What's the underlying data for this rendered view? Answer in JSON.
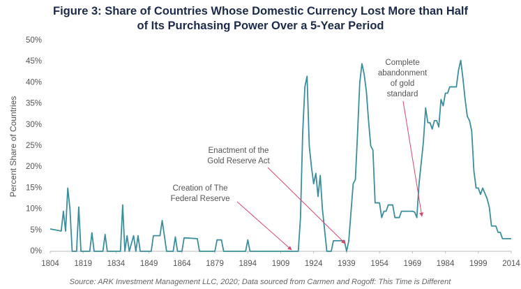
{
  "chart_data": {
    "type": "line",
    "title": "Figure 3: Share of Countries Whose Domestic Currency Lost More than Half of Its Purchasing Power Over a 5-Year Period",
    "y_label": "Percent Share of Countries",
    "source": "Source: ARK Investment Management LLC, 2020; Data sourced from Carmen and Rogoff: This Time is Different",
    "color": "#3b8e9e",
    "annotation_color": "#d9476b",
    "x": [
      1804,
      1807,
      1809,
      1810,
      1811,
      1812,
      1813,
      1814,
      1816,
      1817,
      1818,
      1822,
      1823,
      1824,
      1828,
      1829,
      1830,
      1836,
      1837,
      1838,
      1839,
      1840,
      1842,
      1843,
      1844,
      1845,
      1850,
      1851,
      1854,
      1855,
      1856,
      1857,
      1860,
      1861,
      1862,
      1864,
      1865,
      1871,
      1872,
      1879,
      1880,
      1882,
      1883,
      1893,
      1894,
      1895,
      1917,
      1918,
      1919,
      1920,
      1921,
      1922,
      1923,
      1924,
      1925,
      1926,
      1927,
      1928,
      1930,
      1932,
      1933,
      1938,
      1939,
      1940,
      1942,
      1943,
      1944,
      1945,
      1946,
      1947,
      1948,
      1949,
      1950,
      1951,
      1952,
      1954,
      1955,
      1956,
      1957,
      1958,
      1960,
      1961,
      1963,
      1964,
      1969,
      1970,
      1971,
      1972,
      1974,
      1975,
      1976,
      1977,
      1978,
      1979,
      1980,
      1981,
      1982,
      1983,
      1984,
      1985,
      1986,
      1989,
      1990,
      1991,
      1992,
      1993,
      1994,
      1995,
      1996,
      1997,
      1998,
      1999,
      2000,
      2001,
      2003,
      2004,
      2005,
      2007,
      2008,
      2009,
      2010,
      2014
    ],
    "values": [
      5.3,
      5,
      4.8,
      9.5,
      4.8,
      15,
      10,
      0,
      0,
      10.5,
      0,
      0,
      4.4,
      0,
      0,
      4,
      0,
      0,
      11,
      0,
      3.7,
      0,
      3.7,
      0,
      3.7,
      0,
      0,
      3.7,
      3.7,
      7.3,
      3.7,
      0,
      0,
      3.4,
      0,
      0,
      3.2,
      3,
      0,
      0,
      2.7,
      2.7,
      0,
      0,
      2.7,
      0,
      0,
      8,
      28,
      39,
      41.5,
      25,
      20,
      16,
      18.5,
      13,
      18,
      10,
      0,
      0,
      2.5,
      2.5,
      0,
      2.5,
      16,
      17,
      28,
      40,
      44.5,
      42,
      38,
      31,
      25,
      24,
      11.5,
      11.5,
      8,
      9.5,
      9.5,
      11,
      11,
      8,
      8,
      9.5,
      9.5,
      9.3,
      8,
      16,
      26,
      34,
      30.5,
      30.5,
      29,
      31,
      31,
      29.5,
      36,
      34.5,
      37.5,
      37.5,
      39,
      39,
      43,
      45.3,
      41,
      36,
      32,
      31,
      28.5,
      19,
      15,
      15,
      13.5,
      15,
      12.5,
      10.5,
      6,
      6,
      4.5,
      4.5,
      3,
      3
    ],
    "xlim": [
      1804,
      2014
    ],
    "xticks": [
      1804,
      1819,
      1834,
      1849,
      1864,
      1879,
      1894,
      1909,
      1924,
      1939,
      1954,
      1969,
      1984,
      1999,
      2014
    ],
    "ylim": [
      0,
      50
    ],
    "yticks": [
      {
        "value": 0,
        "label": "0%"
      },
      {
        "value": 5,
        "label": "5%"
      },
      {
        "value": 10,
        "label": "10%"
      },
      {
        "value": 15,
        "label": "15%"
      },
      {
        "value": 20,
        "label": "20%"
      },
      {
        "value": 25,
        "label": "25%"
      },
      {
        "value": 30,
        "label": "30%"
      },
      {
        "value": 35,
        "label": "35%"
      },
      {
        "value": 40,
        "label": "40%"
      },
      {
        "value": 45,
        "label": "45%"
      },
      {
        "value": 50,
        "label": "50%"
      }
    ],
    "annotations": [
      {
        "lines": [
          "Creation of The",
          "Federal Reserve"
        ]
      },
      {
        "lines": [
          "Enactment of the",
          "Gold Reserve Act"
        ]
      },
      {
        "lines": [
          "Complete",
          "abandonment",
          "of gold",
          "standard"
        ]
      }
    ]
  }
}
